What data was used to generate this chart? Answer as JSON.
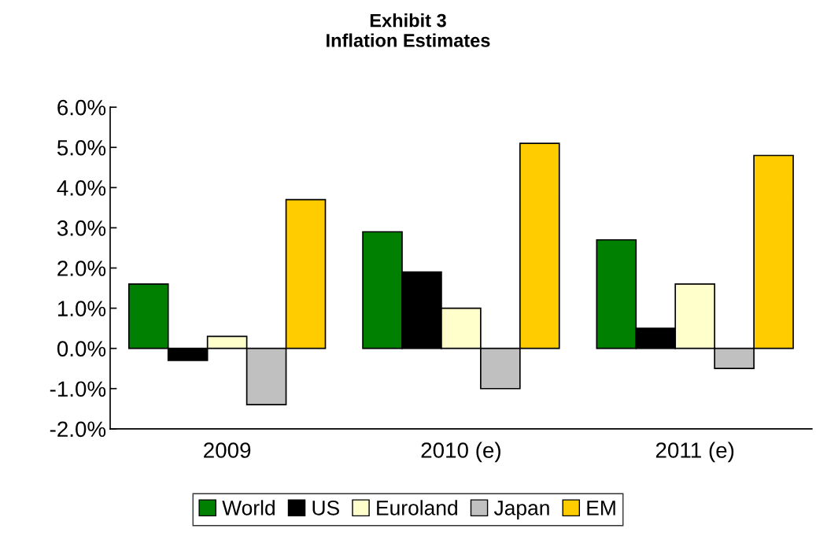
{
  "chart_data": {
    "type": "bar",
    "title": "Exhibit 3\nInflation Estimates",
    "categories": [
      "2009",
      "2010 (e)",
      "2011 (e)"
    ],
    "series": [
      {
        "name": "World",
        "color": "#008000",
        "values": [
          1.6,
          2.9,
          2.7
        ]
      },
      {
        "name": "US",
        "color": "#000000",
        "values": [
          -0.3,
          1.9,
          0.5
        ]
      },
      {
        "name": "Euroland",
        "color": "#ffffcc",
        "values": [
          0.3,
          1.0,
          1.6
        ]
      },
      {
        "name": "Japan",
        "color": "#c0c0c0",
        "values": [
          -1.4,
          -1.0,
          -0.5
        ]
      },
      {
        "name": "EM",
        "color": "#ffcc00",
        "values": [
          3.7,
          5.1,
          4.8
        ]
      }
    ],
    "ylim": [
      -2,
      6
    ],
    "yticks": [
      {
        "value": -2,
        "label": "-2.0%"
      },
      {
        "value": -1,
        "label": "-1.0%"
      },
      {
        "value": 0,
        "label": "0.0%"
      },
      {
        "value": 1,
        "label": "1.0%"
      },
      {
        "value": 2,
        "label": "2.0%"
      },
      {
        "value": 3,
        "label": "3.0%"
      },
      {
        "value": 4,
        "label": "4.0%"
      },
      {
        "value": 5,
        "label": "5.0%"
      },
      {
        "value": 6,
        "label": "6.0%"
      }
    ],
    "grid": false,
    "legend": "bottom"
  }
}
